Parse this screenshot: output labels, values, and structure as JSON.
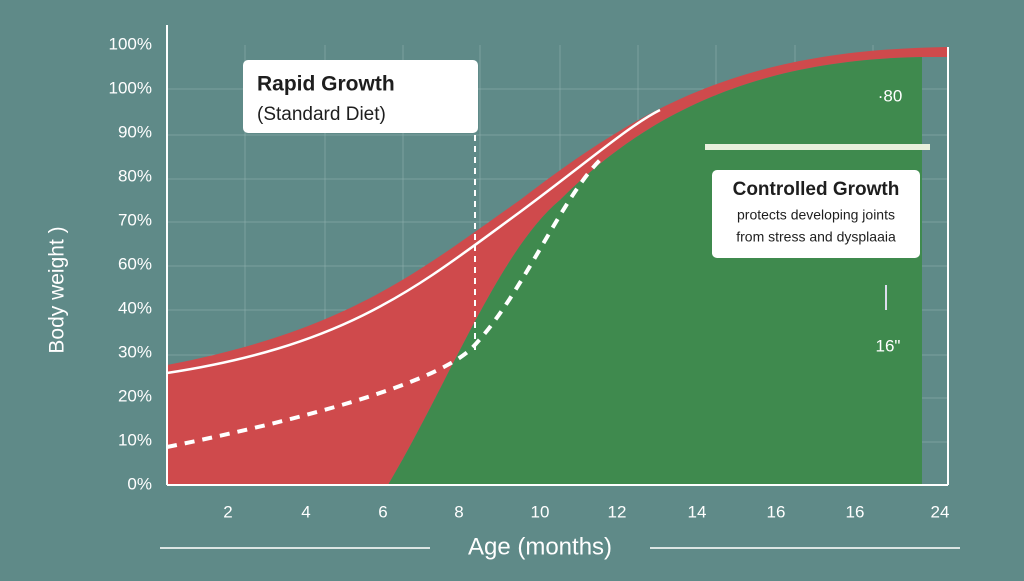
{
  "y_axis": {
    "title": "Body weight )",
    "labels": [
      "100%",
      "100%",
      "90%",
      "80%",
      "70%",
      "60%",
      "40%",
      "30%",
      "20%",
      "10%",
      "0%"
    ]
  },
  "x_axis": {
    "title": "Age (months)",
    "labels": [
      "2",
      "4",
      "6",
      "8",
      "10",
      "12",
      "14",
      "16",
      "16",
      "24"
    ]
  },
  "annotations": {
    "rapid": {
      "title": "Rapid Growth",
      "subtitle": "(Standard Diet)"
    },
    "controlled": {
      "title": "Controlled Growth",
      "line1": "protects developing joints",
      "line2": "from stress and dysplaaia"
    },
    "marker_top": "·80",
    "marker_bottom": "16\""
  }
}
